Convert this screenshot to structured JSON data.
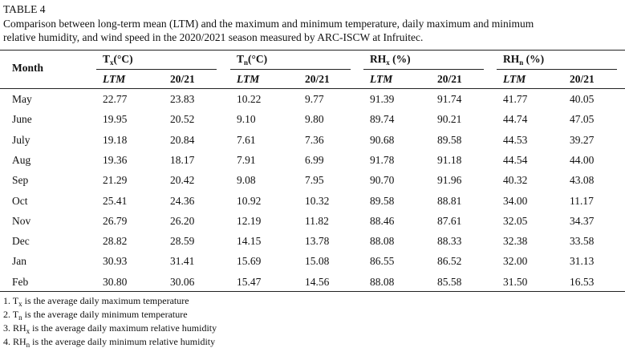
{
  "title": "TABLE 4",
  "caption": [
    "Comparison between long-term mean (LTM) and the maximum and minimum temperature, daily maximum and minimum",
    "relative humidity, and wind speed in the 2020/2021 season measured by ARC-ISCW at Infruitec."
  ],
  "table": {
    "month_header": "Month",
    "groups": [
      {
        "base": "T",
        "sub": "x",
        "unit": "(°C)"
      },
      {
        "base": "T",
        "sub": "n",
        "unit": "(°C)"
      },
      {
        "base": "RH",
        "sub": "x",
        "unit": " (%)"
      },
      {
        "base": "RH",
        "sub": "n",
        "unit": " (%)"
      }
    ],
    "subheaders": [
      "LTM",
      "20/21",
      "LTM",
      "20/21",
      "LTM",
      "20/21",
      "LTM",
      "20/21"
    ],
    "rows": [
      [
        "May",
        "22.77",
        "23.83",
        "10.22",
        "9.77",
        "91.39",
        "91.74",
        "41.77",
        "40.05"
      ],
      [
        "June",
        "19.95",
        "20.52",
        "9.10",
        "9.80",
        "89.74",
        "90.21",
        "44.74",
        "47.05"
      ],
      [
        "July",
        "19.18",
        "20.84",
        "7.61",
        "7.36",
        "90.68",
        "89.58",
        "44.53",
        "39.27"
      ],
      [
        "Aug",
        "19.36",
        "18.17",
        "7.91",
        "6.99",
        "91.78",
        "91.18",
        "44.54",
        "44.00"
      ],
      [
        "Sep",
        "21.29",
        "20.42",
        "9.08",
        "7.95",
        "90.70",
        "91.96",
        "40.32",
        "43.08"
      ],
      [
        "Oct",
        "25.41",
        "24.36",
        "10.92",
        "10.32",
        "89.58",
        "88.81",
        "34.00",
        "11.17"
      ],
      [
        "Nov",
        "26.79",
        "26.20",
        "12.19",
        "11.82",
        "88.46",
        "87.61",
        "32.05",
        "34.37"
      ],
      [
        "Dec",
        "28.82",
        "28.59",
        "14.15",
        "13.78",
        "88.08",
        "88.33",
        "32.38",
        "33.58"
      ],
      [
        "Jan",
        "30.93",
        "31.41",
        "15.69",
        "15.08",
        "86.55",
        "86.52",
        "32.00",
        "31.13"
      ],
      [
        "Feb",
        "30.80",
        "30.06",
        "15.47",
        "14.56",
        "88.08",
        "85.58",
        "31.50",
        "16.53"
      ]
    ]
  },
  "footnotes": [
    {
      "base": "1. T",
      "sub": "x",
      "text": " is the average daily maximum temperature"
    },
    {
      "base": "2. T",
      "sub": "n",
      "text": " is the average daily minimum temperature"
    },
    {
      "base": "3. RH",
      "sub": "x",
      "text": " is the average daily maximum relative humidity"
    },
    {
      "base": "4. RH",
      "sub": "n",
      "text": " is the average daily minimum relative humidity"
    }
  ]
}
